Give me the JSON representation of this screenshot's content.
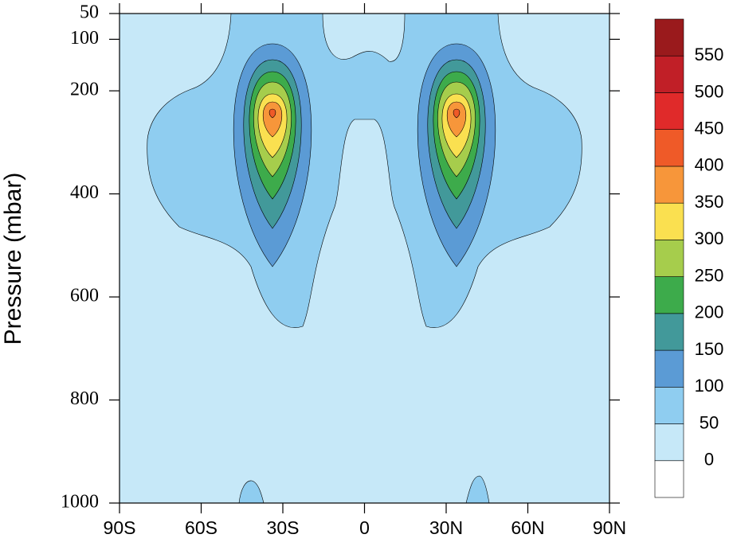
{
  "chart_data": {
    "type": "contour",
    "ylabel": "Pressure (mbar)",
    "xlim": [
      -90,
      90
    ],
    "xticks": [
      {
        "value": -90,
        "label": "90S"
      },
      {
        "value": -60,
        "label": "60S"
      },
      {
        "value": -30,
        "label": "30S"
      },
      0,
      {
        "value": 30,
        "label": "30N"
      },
      {
        "value": 60,
        "label": "60N"
      },
      {
        "value": 90,
        "label": "90N"
      }
    ],
    "ylim": [
      1000,
      50
    ],
    "yticks": [
      50,
      100,
      200,
      400,
      600,
      800,
      1000
    ],
    "colorbar": {
      "levels": [
        0,
        50,
        100,
        150,
        200,
        250,
        300,
        350,
        400,
        450,
        500,
        550
      ],
      "colors": [
        "#ffffff",
        "#c6e8f8",
        "#8fcdf0",
        "#5b9bd5",
        "#42999a",
        "#3dab4b",
        "#a6cd4c",
        "#fae050",
        "#f7963a",
        "#ef5a28",
        "#e02a2a",
        "#c11f27",
        "#9a1a1c"
      ]
    }
  }
}
